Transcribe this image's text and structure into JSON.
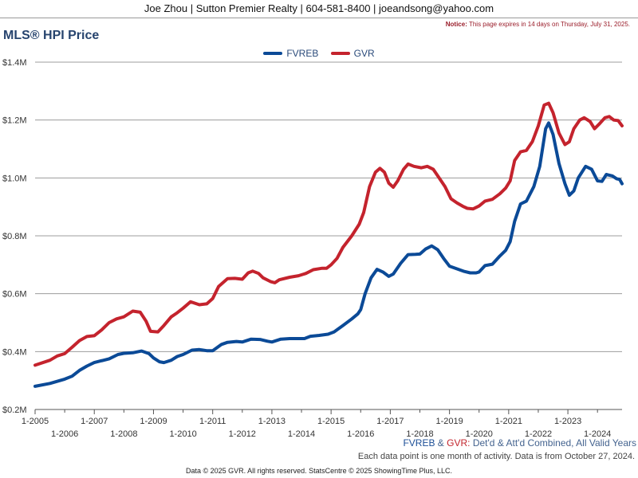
{
  "header": {
    "contact": "Joe Zhou | Sutton Premier Realty | 604-581-8400 | joeandsong@yahoo.com",
    "notice_label": "Notice:",
    "notice_text": "This page expires in 14 days on Thursday, July 31, 2025."
  },
  "caption": {
    "fvreb": "FVREB",
    "amp": "&",
    "gvr": "GVR:",
    "rest": "Det'd & Att'd Combined, All Valid Years",
    "note": "Each data point is one month of activity. Data is from October 27, 2024."
  },
  "footer": {
    "text": "Data © 2025 GVR. All rights reserved. StatsCentre © 2025 ShowingTime Plus, LLC."
  },
  "chart_data": {
    "type": "line",
    "title": "MLS® HPI Price",
    "xlabel": "",
    "ylabel": "",
    "ylim": [
      0.2,
      1.4
    ],
    "xlim": [
      2005.0,
      2024.83
    ],
    "y_ticks": [
      "$0.2M",
      "$0.4M",
      "$0.6M",
      "$0.8M",
      "$1.0M",
      "$1.2M",
      "$1.4M"
    ],
    "x_ticks_top": [
      "1-2005",
      "1-2007",
      "1-2009",
      "1-2011",
      "1-2013",
      "1-2015",
      "1-2017",
      "1-2019",
      "1-2021",
      "1-2023"
    ],
    "x_ticks_bottom": [
      "1-2006",
      "1-2008",
      "1-2010",
      "1-2012",
      "1-2014",
      "1-2016",
      "1-2018",
      "1-2020",
      "1-2022",
      "1-2024"
    ],
    "legend_position": "top-center",
    "grid": true,
    "series": [
      {
        "name": "FVREB",
        "color": "#0b4a97",
        "points": [
          [
            2005.0,
            0.28
          ],
          [
            2005.5,
            0.29
          ],
          [
            2006.0,
            0.305
          ],
          [
            2006.25,
            0.315
          ],
          [
            2006.5,
            0.335
          ],
          [
            2006.75,
            0.35
          ],
          [
            2007.0,
            0.362
          ],
          [
            2007.5,
            0.375
          ],
          [
            2007.8,
            0.39
          ],
          [
            2008.0,
            0.394
          ],
          [
            2008.3,
            0.396
          ],
          [
            2008.6,
            0.402
          ],
          [
            2008.85,
            0.393
          ],
          [
            2009.0,
            0.378
          ],
          [
            2009.2,
            0.365
          ],
          [
            2009.35,
            0.362
          ],
          [
            2009.6,
            0.37
          ],
          [
            2009.8,
            0.383
          ],
          [
            2010.0,
            0.39
          ],
          [
            2010.3,
            0.405
          ],
          [
            2010.55,
            0.407
          ],
          [
            2010.8,
            0.403
          ],
          [
            2011.0,
            0.403
          ],
          [
            2011.3,
            0.425
          ],
          [
            2011.5,
            0.432
          ],
          [
            2011.8,
            0.435
          ],
          [
            2012.0,
            0.433
          ],
          [
            2012.3,
            0.443
          ],
          [
            2012.6,
            0.442
          ],
          [
            2012.85,
            0.436
          ],
          [
            2013.0,
            0.433
          ],
          [
            2013.3,
            0.443
          ],
          [
            2013.6,
            0.445
          ],
          [
            2013.9,
            0.445
          ],
          [
            2014.1,
            0.445
          ],
          [
            2014.3,
            0.453
          ],
          [
            2014.6,
            0.456
          ],
          [
            2014.9,
            0.46
          ],
          [
            2015.1,
            0.468
          ],
          [
            2015.4,
            0.49
          ],
          [
            2015.7,
            0.513
          ],
          [
            2015.9,
            0.53
          ],
          [
            2016.0,
            0.545
          ],
          [
            2016.15,
            0.6
          ],
          [
            2016.35,
            0.655
          ],
          [
            2016.55,
            0.684
          ],
          [
            2016.75,
            0.675
          ],
          [
            2016.95,
            0.66
          ],
          [
            2017.1,
            0.668
          ],
          [
            2017.35,
            0.705
          ],
          [
            2017.6,
            0.735
          ],
          [
            2017.85,
            0.736
          ],
          [
            2018.0,
            0.737
          ],
          [
            2018.2,
            0.755
          ],
          [
            2018.4,
            0.765
          ],
          [
            2018.6,
            0.752
          ],
          [
            2018.8,
            0.722
          ],
          [
            2019.0,
            0.695
          ],
          [
            2019.2,
            0.688
          ],
          [
            2019.5,
            0.677
          ],
          [
            2019.7,
            0.672
          ],
          [
            2019.9,
            0.672
          ],
          [
            2020.0,
            0.675
          ],
          [
            2020.2,
            0.697
          ],
          [
            2020.45,
            0.702
          ],
          [
            2020.7,
            0.73
          ],
          [
            2020.9,
            0.75
          ],
          [
            2021.05,
            0.78
          ],
          [
            2021.2,
            0.85
          ],
          [
            2021.4,
            0.91
          ],
          [
            2021.6,
            0.92
          ],
          [
            2021.85,
            0.97
          ],
          [
            2022.05,
            1.04
          ],
          [
            2022.25,
            1.17
          ],
          [
            2022.35,
            1.19
          ],
          [
            2022.5,
            1.15
          ],
          [
            2022.7,
            1.05
          ],
          [
            2022.9,
            0.98
          ],
          [
            2023.05,
            0.94
          ],
          [
            2023.2,
            0.955
          ],
          [
            2023.35,
            1.0
          ],
          [
            2023.6,
            1.04
          ],
          [
            2023.8,
            1.03
          ],
          [
            2024.0,
            0.99
          ],
          [
            2024.15,
            0.988
          ],
          [
            2024.3,
            1.012
          ],
          [
            2024.5,
            1.007
          ],
          [
            2024.65,
            0.997
          ],
          [
            2024.75,
            0.995
          ],
          [
            2024.83,
            0.98
          ]
        ]
      },
      {
        "name": "GVR",
        "color": "#c4232d",
        "points": [
          [
            2005.0,
            0.353
          ],
          [
            2005.5,
            0.37
          ],
          [
            2005.75,
            0.385
          ],
          [
            2006.0,
            0.393
          ],
          [
            2006.25,
            0.415
          ],
          [
            2006.5,
            0.438
          ],
          [
            2006.75,
            0.452
          ],
          [
            2007.0,
            0.455
          ],
          [
            2007.25,
            0.475
          ],
          [
            2007.5,
            0.5
          ],
          [
            2007.75,
            0.513
          ],
          [
            2008.0,
            0.52
          ],
          [
            2008.3,
            0.54
          ],
          [
            2008.55,
            0.536
          ],
          [
            2008.75,
            0.505
          ],
          [
            2008.9,
            0.47
          ],
          [
            2009.15,
            0.468
          ],
          [
            2009.35,
            0.49
          ],
          [
            2009.6,
            0.52
          ],
          [
            2009.8,
            0.534
          ],
          [
            2010.0,
            0.55
          ],
          [
            2010.25,
            0.572
          ],
          [
            2010.55,
            0.562
          ],
          [
            2010.8,
            0.565
          ],
          [
            2011.0,
            0.583
          ],
          [
            2011.2,
            0.625
          ],
          [
            2011.5,
            0.652
          ],
          [
            2011.75,
            0.653
          ],
          [
            2012.0,
            0.65
          ],
          [
            2012.2,
            0.672
          ],
          [
            2012.35,
            0.678
          ],
          [
            2012.55,
            0.67
          ],
          [
            2012.7,
            0.655
          ],
          [
            2012.95,
            0.642
          ],
          [
            2013.1,
            0.638
          ],
          [
            2013.25,
            0.648
          ],
          [
            2013.6,
            0.657
          ],
          [
            2013.9,
            0.662
          ],
          [
            2014.15,
            0.67
          ],
          [
            2014.4,
            0.683
          ],
          [
            2014.7,
            0.688
          ],
          [
            2014.85,
            0.688
          ],
          [
            2015.0,
            0.7
          ],
          [
            2015.2,
            0.722
          ],
          [
            2015.4,
            0.76
          ],
          [
            2015.7,
            0.8
          ],
          [
            2015.95,
            0.84
          ],
          [
            2016.1,
            0.88
          ],
          [
            2016.3,
            0.97
          ],
          [
            2016.5,
            1.02
          ],
          [
            2016.65,
            1.033
          ],
          [
            2016.8,
            1.02
          ],
          [
            2016.95,
            0.982
          ],
          [
            2017.1,
            0.968
          ],
          [
            2017.25,
            0.99
          ],
          [
            2017.45,
            1.03
          ],
          [
            2017.6,
            1.048
          ],
          [
            2017.8,
            1.04
          ],
          [
            2018.05,
            1.035
          ],
          [
            2018.25,
            1.04
          ],
          [
            2018.45,
            1.03
          ],
          [
            2018.65,
            1.0
          ],
          [
            2018.85,
            0.97
          ],
          [
            2019.05,
            0.928
          ],
          [
            2019.25,
            0.914
          ],
          [
            2019.45,
            0.902
          ],
          [
            2019.6,
            0.895
          ],
          [
            2019.8,
            0.893
          ],
          [
            2020.0,
            0.903
          ],
          [
            2020.2,
            0.92
          ],
          [
            2020.45,
            0.926
          ],
          [
            2020.7,
            0.945
          ],
          [
            2020.9,
            0.965
          ],
          [
            2021.05,
            0.99
          ],
          [
            2021.2,
            1.06
          ],
          [
            2021.4,
            1.09
          ],
          [
            2021.6,
            1.095
          ],
          [
            2021.8,
            1.125
          ],
          [
            2022.0,
            1.18
          ],
          [
            2022.2,
            1.252
          ],
          [
            2022.35,
            1.258
          ],
          [
            2022.5,
            1.225
          ],
          [
            2022.7,
            1.155
          ],
          [
            2022.9,
            1.115
          ],
          [
            2023.05,
            1.125
          ],
          [
            2023.2,
            1.17
          ],
          [
            2023.4,
            1.2
          ],
          [
            2023.55,
            1.208
          ],
          [
            2023.75,
            1.195
          ],
          [
            2023.9,
            1.17
          ],
          [
            2024.05,
            1.185
          ],
          [
            2024.25,
            1.208
          ],
          [
            2024.4,
            1.212
          ],
          [
            2024.55,
            1.2
          ],
          [
            2024.7,
            1.198
          ],
          [
            2024.83,
            1.18
          ]
        ]
      }
    ]
  }
}
